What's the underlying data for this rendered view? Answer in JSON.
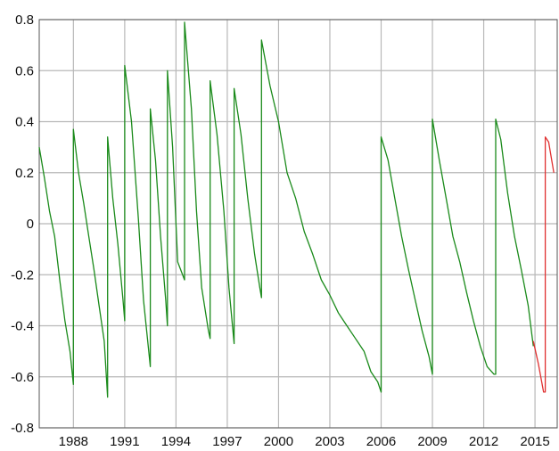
{
  "chart_data": {
    "type": "line",
    "title": "",
    "xlabel": "",
    "ylabel": "",
    "xlim": [
      1986,
      2016.3
    ],
    "ylim": [
      -0.8,
      0.8
    ],
    "grid": true,
    "x_ticks": [
      1988,
      1991,
      1994,
      1997,
      2000,
      2003,
      2006,
      2009,
      2012,
      2015
    ],
    "x_tick_labels": [
      "1988",
      "1991",
      "1994",
      "1997",
      "2000",
      "2003",
      "2006",
      "2009",
      "2012",
      "2015"
    ],
    "y_ticks": [
      0.8,
      0.6,
      0.4,
      0.2,
      0,
      -0.2,
      -0.4,
      -0.6,
      -0.8
    ],
    "y_tick_labels": [
      "0.8",
      "0.6",
      "0.4",
      "0.2",
      "0",
      "-0.2",
      "-0.4",
      "-0.6",
      "-0.8"
    ],
    "series": [
      {
        "color": "#1a8a1a",
        "x": [
          1986.0,
          1986.3,
          1986.6,
          1986.9,
          1987.2,
          1987.5,
          1987.8,
          1988.0,
          1988.0,
          1988.3,
          1988.6,
          1988.9,
          1989.2,
          1989.5,
          1989.8,
          1990.0,
          1990.0,
          1990.3,
          1990.6,
          1990.9,
          1991.0,
          1991.0,
          1991.4,
          1991.8,
          1992.1,
          1992.5,
          1992.5,
          1992.8,
          1993.1,
          1993.4,
          1993.5,
          1993.5,
          1993.8,
          1994.1,
          1994.5,
          1994.5,
          1994.9,
          1995.2,
          1995.5,
          1995.9,
          1996.0,
          1996.0,
          1996.4,
          1996.8,
          1997.1,
          1997.4,
          1997.4,
          1997.8,
          1998.2,
          1998.6,
          1998.9,
          1999.0,
          1999.0,
          1999.5,
          2000.0,
          2000.5,
          2001.0,
          2001.5,
          2002.0,
          2002.5,
          2003.0,
          2003.5,
          2004.0,
          2004.5,
          2005.0,
          2005.4,
          2005.8,
          2006.0,
          2006.0,
          2006.4,
          2006.8,
          2007.2,
          2007.6,
          2008.0,
          2008.4,
          2008.8,
          2009.0,
          2009.0,
          2009.4,
          2009.8,
          2010.2,
          2010.6,
          2011.0,
          2011.4,
          2011.8,
          2012.2,
          2012.6,
          2012.7,
          2012.7,
          2013.0,
          2013.4,
          2013.8,
          2014.2,
          2014.6,
          2014.9
        ],
        "y": [
          0.3,
          0.18,
          0.05,
          -0.05,
          -0.22,
          -0.38,
          -0.5,
          -0.63,
          0.37,
          0.2,
          0.08,
          -0.05,
          -0.18,
          -0.32,
          -0.46,
          -0.68,
          0.34,
          0.1,
          -0.08,
          -0.3,
          -0.38,
          0.62,
          0.4,
          0.02,
          -0.3,
          -0.56,
          0.45,
          0.25,
          -0.05,
          -0.3,
          -0.4,
          0.6,
          0.3,
          -0.15,
          -0.22,
          0.79,
          0.45,
          0.05,
          -0.25,
          -0.42,
          -0.45,
          0.56,
          0.35,
          0.05,
          -0.25,
          -0.47,
          0.53,
          0.35,
          0.1,
          -0.12,
          -0.25,
          -0.29,
          0.72,
          0.54,
          0.4,
          0.2,
          0.1,
          -0.03,
          -0.12,
          -0.22,
          -0.28,
          -0.35,
          -0.4,
          -0.45,
          -0.5,
          -0.58,
          -0.62,
          -0.66,
          0.34,
          0.25,
          0.1,
          -0.05,
          -0.18,
          -0.3,
          -0.42,
          -0.52,
          -0.59,
          0.41,
          0.25,
          0.1,
          -0.05,
          -0.15,
          -0.27,
          -0.38,
          -0.48,
          -0.56,
          -0.59,
          -0.59,
          0.41,
          0.33,
          0.12,
          -0.05,
          -0.18,
          -0.32,
          -0.48
        ]
      },
      {
        "color": "#e03030",
        "x": [
          2014.9,
          2015.2,
          2015.5,
          2015.6,
          2015.6,
          2015.8,
          2016.1
        ],
        "y": [
          -0.46,
          -0.55,
          -0.66,
          -0.66,
          0.34,
          0.32,
          0.2
        ]
      }
    ]
  }
}
